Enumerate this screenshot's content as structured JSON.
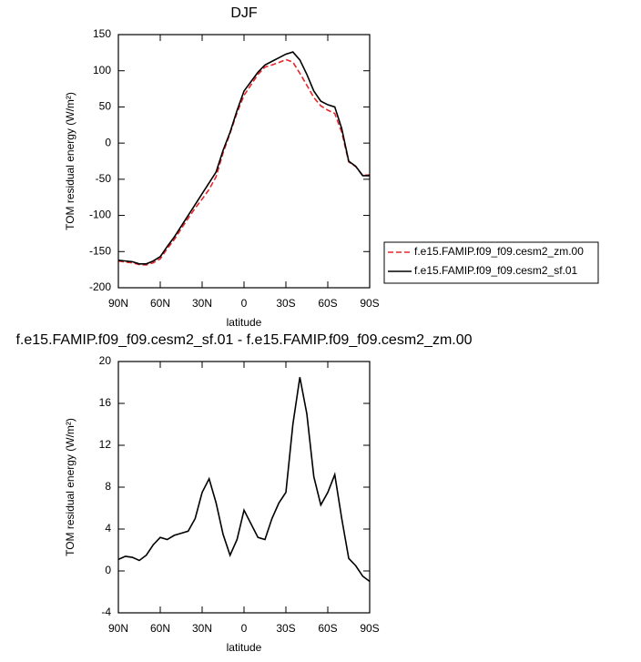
{
  "chart_data": [
    {
      "type": "line",
      "title": "DJF",
      "xlabel": "latitude",
      "ylabel": "TOM residual energy (W/m²)",
      "x": [
        90,
        85,
        80,
        75,
        70,
        65,
        60,
        55,
        50,
        45,
        40,
        35,
        30,
        25,
        20,
        15,
        10,
        5,
        0,
        -5,
        -10,
        -15,
        -20,
        -25,
        -30,
        -35,
        -40,
        -45,
        -50,
        -55,
        -60,
        -65,
        -70,
        -75,
        -80,
        -85,
        -90
      ],
      "xlim": [
        90,
        -90
      ],
      "xticks": [
        {
          "value": 90,
          "label": "90N"
        },
        {
          "value": 60,
          "label": "60N"
        },
        {
          "value": 30,
          "label": "30N"
        },
        0,
        {
          "value": -30,
          "label": "30S"
        },
        {
          "value": -60,
          "label": "60S"
        },
        {
          "value": -90,
          "label": "90S"
        }
      ],
      "ylim": [
        -200,
        150
      ],
      "yticks": [
        -200,
        -150,
        -100,
        -50,
        0,
        50,
        100,
        150
      ],
      "legend": "outside-right",
      "series": [
        {
          "name": "f.e15.FAMIP.f09_f09.cesm2_zm.00",
          "color": "#e8262a",
          "line_style": "dashed",
          "values": [
            -163,
            -164.5,
            -165.5,
            -168,
            -168.5,
            -165.5,
            -160,
            -146,
            -133.5,
            -118.5,
            -104,
            -90,
            -77.5,
            -64,
            -46.5,
            -13.5,
            13.5,
            42,
            66,
            80.5,
            95,
            105,
            108,
            111.5,
            115.5,
            112,
            96.5,
            80,
            63,
            51.5,
            45.5,
            41,
            15,
            -26,
            -32.5,
            -44.5,
            -44
          ]
        },
        {
          "name": "f.e15.FAMIP.f09_f09.cesm2_sf.01",
          "color": "#000000",
          "line_style": "solid",
          "values": [
            -162,
            -163,
            -164,
            -167,
            -167,
            -163,
            -157,
            -143,
            -130,
            -115,
            -100,
            -85,
            -70,
            -55,
            -40,
            -10,
            15,
            45,
            72,
            85,
            98,
            108,
            113,
            118,
            123,
            126,
            115,
            95,
            72,
            58,
            53,
            50,
            20,
            -25,
            -32,
            -45,
            -45
          ]
        }
      ]
    },
    {
      "type": "line",
      "title": "f.e15.FAMIP.f09_f09.cesm2_sf.01 - f.e15.FAMIP.f09_f09.cesm2_zm.00",
      "xlabel": "latitude",
      "ylabel": "TOM residual energy (W/m²)",
      "x": [
        90,
        85,
        80,
        75,
        70,
        65,
        60,
        55,
        50,
        45,
        40,
        35,
        30,
        25,
        20,
        15,
        10,
        5,
        0,
        -5,
        -10,
        -15,
        -20,
        -25,
        -30,
        -35,
        -40,
        -45,
        -50,
        -55,
        -60,
        -65,
        -70,
        -75,
        -80,
        -85,
        -90
      ],
      "xlim": [
        90,
        -90
      ],
      "xticks": [
        {
          "value": 90,
          "label": "90N"
        },
        {
          "value": 60,
          "label": "60N"
        },
        {
          "value": 30,
          "label": "30N"
        },
        0,
        {
          "value": -30,
          "label": "30S"
        },
        {
          "value": -60,
          "label": "60S"
        },
        {
          "value": -90,
          "label": "90S"
        }
      ],
      "ylim": [
        -4,
        20
      ],
      "yticks": [
        -4,
        0,
        4,
        8,
        12,
        16,
        20
      ],
      "color": "#000000",
      "values": [
        1.1,
        1.4,
        1.3,
        1.0,
        1.5,
        2.5,
        3.2,
        3.0,
        3.4,
        3.6,
        3.8,
        5.0,
        7.5,
        8.8,
        6.5,
        3.5,
        1.5,
        3.0,
        5.8,
        4.5,
        3.2,
        3.0,
        5.0,
        6.5,
        7.5,
        14,
        18.5,
        15,
        9,
        6.3,
        7.5,
        9.2,
        5,
        1.2,
        0.5,
        -0.5,
        -1.0
      ]
    }
  ]
}
